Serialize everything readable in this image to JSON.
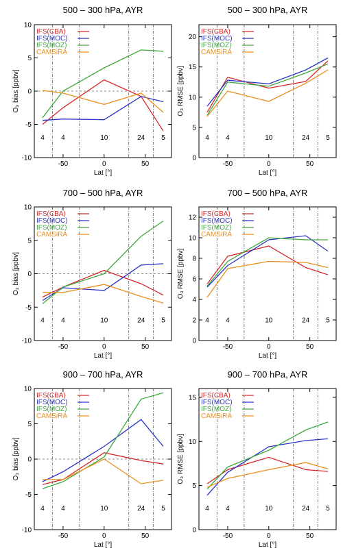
{
  "colors": {
    "IFS(CBA)": "#d62728",
    "IFS(MOC)": "#2a35c9",
    "IFS(MOZ)": "#3ca93c",
    "CAMSiRA": "#e8901e"
  },
  "chart_data": [
    {
      "type": "line",
      "title": "500 – 300 hPa, AYR",
      "ylabel": "O₃ bias [ppbv]",
      "xlabel": "Lat [°]",
      "ylim": [
        -10,
        10
      ],
      "yticks": [
        -10,
        -5,
        0,
        5,
        10
      ],
      "zero_line": true,
      "x": [
        -75,
        -50,
        0,
        45,
        72
      ],
      "counts": [
        "4",
        "4",
        "10",
        "24",
        "5"
      ],
      "series": [
        {
          "name": "IFS(CBA)",
          "values": [
            -5.0,
            -2.5,
            1.7,
            -0.8,
            -6.0
          ]
        },
        {
          "name": "IFS(MOC)",
          "values": [
            -4.4,
            -4.2,
            -4.3,
            -0.8,
            -1.6
          ]
        },
        {
          "name": "IFS(MOZ)",
          "values": [
            -4.0,
            0.0,
            3.5,
            6.2,
            6.0
          ]
        },
        {
          "name": "CAMSiRA",
          "values": [
            0.1,
            -0.3,
            -2.0,
            -0.3,
            -3.2
          ]
        }
      ]
    },
    {
      "type": "line",
      "title": "500 – 300 hPa, AYR",
      "ylabel": "O₃ RMSE [ppbv]",
      "xlabel": "Lat [°]",
      "ylim": [
        0,
        22
      ],
      "yticks": [
        0,
        5,
        10,
        15,
        20
      ],
      "zero_line": false,
      "x": [
        -75,
        -50,
        0,
        45,
        72
      ],
      "counts": [
        "4",
        "4",
        "10",
        "24",
        "5"
      ],
      "series": [
        {
          "name": "IFS(CBA)",
          "values": [
            7.5,
            13.3,
            11.5,
            12.6,
            16.0
          ]
        },
        {
          "name": "IFS(MOC)",
          "values": [
            8.5,
            12.8,
            12.2,
            14.5,
            16.5
          ]
        },
        {
          "name": "IFS(MOZ)",
          "values": [
            7.0,
            12.5,
            11.8,
            14.0,
            15.5
          ]
        },
        {
          "name": "CAMSiRA",
          "values": [
            6.8,
            11.0,
            9.3,
            12.3,
            14.5
          ]
        }
      ]
    },
    {
      "type": "line",
      "title": "700 – 500 hPa, AYR",
      "ylabel": "O₃ bias [ppbv]",
      "xlabel": "Lat [°]",
      "ylim": [
        -10,
        10
      ],
      "yticks": [
        -10,
        -5,
        0,
        5,
        10
      ],
      "zero_line": true,
      "x": [
        -75,
        -50,
        0,
        45,
        72
      ],
      "counts": [
        "4",
        "4",
        "10",
        "24",
        "5"
      ],
      "series": [
        {
          "name": "IFS(CBA)",
          "values": [
            -3.5,
            -2.0,
            0.5,
            -1.5,
            -3.2
          ]
        },
        {
          "name": "IFS(MOC)",
          "values": [
            -4.0,
            -2.1,
            -2.5,
            1.3,
            1.5
          ]
        },
        {
          "name": "IFS(MOZ)",
          "values": [
            -4.5,
            -2.0,
            0.0,
            5.6,
            7.9
          ]
        },
        {
          "name": "CAMSiRA",
          "values": [
            -2.8,
            -2.8,
            -1.6,
            -3.4,
            -4.4
          ]
        }
      ]
    },
    {
      "type": "line",
      "title": "700 – 500 hPa, AYR",
      "ylabel": "O₃ RMSE [ppbv]",
      "xlabel": "Lat [°]",
      "ylim": [
        0,
        13
      ],
      "yticks": [
        0,
        2,
        4,
        6,
        8,
        10,
        12
      ],
      "zero_line": false,
      "x": [
        -75,
        -50,
        0,
        45,
        72
      ],
      "counts": [
        "4",
        "4",
        "10",
        "24",
        "5"
      ],
      "series": [
        {
          "name": "IFS(CBA)",
          "values": [
            5.5,
            8.2,
            9.2,
            7.1,
            6.4
          ]
        },
        {
          "name": "IFS(MOC)",
          "values": [
            5.2,
            7.3,
            9.8,
            10.2,
            8.7
          ]
        },
        {
          "name": "IFS(MOZ)",
          "values": [
            5.3,
            7.7,
            10.0,
            9.8,
            9.8
          ]
        },
        {
          "name": "CAMSiRA",
          "values": [
            4.2,
            7.0,
            7.7,
            7.6,
            7.1
          ]
        }
      ]
    },
    {
      "type": "line",
      "title": "900 – 700 hPa, AYR",
      "ylabel": "O₃ bias [ppbv]",
      "xlabel": "Lat [°]",
      "ylim": [
        -10,
        10
      ],
      "yticks": [
        -10,
        -5,
        0,
        5,
        10
      ],
      "zero_line": true,
      "x": [
        -75,
        -50,
        0,
        45,
        72
      ],
      "counts": [
        "4",
        "4",
        "10",
        "24",
        "5"
      ],
      "series": [
        {
          "name": "IFS(CBA)",
          "values": [
            -3.6,
            -2.9,
            0.9,
            -0.2,
            -0.7
          ]
        },
        {
          "name": "IFS(MOC)",
          "values": [
            -3.2,
            -1.8,
            1.8,
            5.6,
            1.8
          ]
        },
        {
          "name": "IFS(MOZ)",
          "values": [
            -4.2,
            -3.2,
            0.3,
            8.5,
            9.4
          ]
        },
        {
          "name": "CAMSiRA",
          "values": [
            -2.9,
            -2.9,
            0.0,
            -3.5,
            -3.0
          ]
        }
      ]
    },
    {
      "type": "line",
      "title": "900 – 700 hPa, AYR",
      "ylabel": "O₃ RMSE [ppbv]",
      "xlabel": "Lat [°]",
      "ylim": [
        0,
        16
      ],
      "yticks": [
        0,
        5,
        10,
        15
      ],
      "zero_line": false,
      "x": [
        -75,
        -50,
        0,
        45,
        72
      ],
      "counts": [
        "4",
        "4",
        "10",
        "24",
        "5"
      ],
      "series": [
        {
          "name": "IFS(CBA)",
          "values": [
            5.2,
            6.8,
            8.2,
            6.8,
            6.6
          ]
        },
        {
          "name": "IFS(MOC)",
          "values": [
            3.9,
            6.5,
            9.4,
            10.1,
            10.3
          ]
        },
        {
          "name": "IFS(MOZ)",
          "values": [
            4.6,
            7.1,
            9.0,
            11.3,
            12.2
          ]
        },
        {
          "name": "CAMSiRA",
          "values": [
            4.8,
            5.8,
            6.8,
            7.6,
            6.9
          ]
        }
      ]
    }
  ],
  "x_axis": {
    "xlim": [
      -85,
      82
    ],
    "ticks": [
      -50,
      0,
      50
    ],
    "dividers": [
      -63,
      -30,
      30,
      60
    ]
  }
}
